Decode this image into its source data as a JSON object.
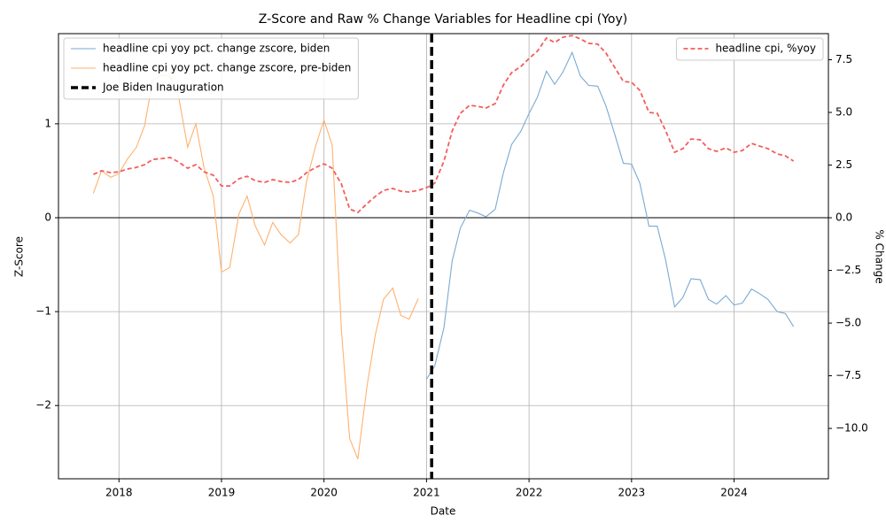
{
  "chart_data": {
    "type": "line",
    "title": "Z-Score and Raw % Change Variables for Headline cpi (Yoy)",
    "x_label": "Date",
    "y_label": "Z-Score",
    "y2_label": "% Change",
    "xlim": [
      2017.41,
      2024.92
    ],
    "xticks": [
      2018,
      2019,
      2020,
      2021,
      2022,
      2023,
      2024
    ],
    "ylim": [
      -2.78,
      1.96
    ],
    "yticks": [
      {
        "value": -2,
        "label": "−2"
      },
      {
        "value": -1,
        "label": "−1"
      },
      0,
      1
    ],
    "y2lim": [
      -12.39,
      8.74
    ],
    "y2ticks": [
      {
        "value": -10,
        "label": "−10.0"
      },
      {
        "value": -7.5,
        "label": "−7.5"
      },
      {
        "value": -5,
        "label": "−5.0"
      },
      {
        "value": -2.5,
        "label": "−2.5"
      },
      {
        "value": 0,
        "label": "0.0"
      },
      2.5,
      {
        "value": 5,
        "label": "5.0"
      },
      7.5
    ],
    "grid": true,
    "legend": "upper left",
    "legend2": "upper right",
    "hline": 0,
    "series": [
      {
        "name": "headline cpi yoy pct. change zscore, biden",
        "color": "#7aaad2",
        "axis": "y",
        "x": [
          2021.0,
          2021.08,
          2021.17,
          2021.25,
          2021.33,
          2021.42,
          2021.5,
          2021.58,
          2021.67,
          2021.75,
          2021.83,
          2021.92,
          2022.0,
          2022.08,
          2022.17,
          2022.25,
          2022.33,
          2022.42,
          2022.5,
          2022.58,
          2022.67,
          2022.75,
          2022.83,
          2022.92,
          2023.0,
          2023.08,
          2023.17,
          2023.25,
          2023.33,
          2023.42,
          2023.5,
          2023.58,
          2023.67,
          2023.75,
          2023.83,
          2023.92,
          2024.0,
          2024.08,
          2024.17,
          2024.25,
          2024.33,
          2024.42,
          2024.5,
          2024.58
        ],
        "values": [
          -1.72,
          -1.58,
          -1.17,
          -0.46,
          -0.11,
          0.08,
          0.05,
          0.01,
          0.09,
          0.48,
          0.78,
          0.92,
          1.11,
          1.28,
          1.56,
          1.42,
          1.55,
          1.76,
          1.51,
          1.41,
          1.4,
          1.19,
          0.91,
          0.58,
          0.57,
          0.37,
          -0.09,
          -0.09,
          -0.44,
          -0.95,
          -0.85,
          -0.65,
          -0.66,
          -0.87,
          -0.92,
          -0.83,
          -0.93,
          -0.91,
          -0.76,
          -0.81,
          -0.87,
          -1.0,
          -1.02,
          -1.16
        ]
      },
      {
        "name": "headline cpi yoy pct. change zscore, pre-biden",
        "color": "#ffb26e",
        "axis": "y",
        "x": [
          2017.75,
          2017.83,
          2017.92,
          2018.0,
          2018.08,
          2018.17,
          2018.25,
          2018.33,
          2018.42,
          2018.5,
          2018.58,
          2018.67,
          2018.75,
          2018.83,
          2018.92,
          2019.0,
          2019.08,
          2019.17,
          2019.25,
          2019.33,
          2019.42,
          2019.5,
          2019.58,
          2019.67,
          2019.75,
          2019.83,
          2019.92,
          2020.0,
          2020.08,
          2020.17,
          2020.25,
          2020.33,
          2020.42,
          2020.5,
          2020.58,
          2020.67,
          2020.75,
          2020.83,
          2020.92
        ],
        "values": [
          0.26,
          0.5,
          0.43,
          0.47,
          0.62,
          0.75,
          0.98,
          1.47,
          1.52,
          1.5,
          1.3,
          0.75,
          1.0,
          0.53,
          0.23,
          -0.58,
          -0.53,
          0.04,
          0.23,
          -0.09,
          -0.29,
          -0.05,
          -0.18,
          -0.27,
          -0.18,
          0.39,
          0.77,
          1.04,
          0.77,
          -1.2,
          -2.35,
          -2.57,
          -1.79,
          -1.25,
          -0.87,
          -0.75,
          -1.04,
          -1.08,
          -0.86
        ]
      },
      {
        "name": "headline cpi, %yoy",
        "color": "#f25f5c",
        "axis": "y2",
        "dashed": true,
        "x": [
          2017.75,
          2017.83,
          2017.92,
          2018.0,
          2018.08,
          2018.17,
          2018.25,
          2018.33,
          2018.42,
          2018.5,
          2018.58,
          2018.67,
          2018.75,
          2018.83,
          2018.92,
          2019.0,
          2019.08,
          2019.17,
          2019.25,
          2019.33,
          2019.42,
          2019.5,
          2019.58,
          2019.67,
          2019.75,
          2019.83,
          2019.92,
          2020.0,
          2020.08,
          2020.17,
          2020.25,
          2020.33,
          2020.42,
          2020.5,
          2020.58,
          2020.67,
          2020.75,
          2020.83,
          2020.92,
          2021.0,
          2021.08,
          2021.17,
          2021.25,
          2021.33,
          2021.42,
          2021.5,
          2021.58,
          2021.67,
          2021.75,
          2021.83,
          2021.92,
          2022.0,
          2022.08,
          2022.17,
          2022.25,
          2022.33,
          2022.42,
          2022.5,
          2022.58,
          2022.67,
          2022.75,
          2022.83,
          2022.92,
          2023.0,
          2023.08,
          2023.17,
          2023.25,
          2023.33,
          2023.42,
          2023.5,
          2023.58,
          2023.67,
          2023.75,
          2023.83,
          2023.92,
          2024.0,
          2024.08,
          2024.17,
          2024.25,
          2024.33,
          2024.42,
          2024.5,
          2024.58
        ],
        "values": [
          2.06,
          2.23,
          2.14,
          2.18,
          2.31,
          2.39,
          2.52,
          2.77,
          2.81,
          2.86,
          2.65,
          2.35,
          2.52,
          2.18,
          2.02,
          1.51,
          1.51,
          1.85,
          1.97,
          1.76,
          1.68,
          1.81,
          1.72,
          1.68,
          1.81,
          2.14,
          2.39,
          2.56,
          2.35,
          1.6,
          0.42,
          0.25,
          0.67,
          1.01,
          1.3,
          1.39,
          1.26,
          1.22,
          1.3,
          1.43,
          1.64,
          2.69,
          4.12,
          4.96,
          5.34,
          5.29,
          5.21,
          5.42,
          6.3,
          6.89,
          7.18,
          7.56,
          7.9,
          8.53,
          8.32,
          8.57,
          8.65,
          8.49,
          8.28,
          8.24,
          7.82,
          7.18,
          6.47,
          6.43,
          6.05,
          5.0,
          4.96,
          4.16,
          3.11,
          3.28,
          3.74,
          3.7,
          3.28,
          3.15,
          3.32,
          3.11,
          3.19,
          3.53,
          3.4,
          3.28,
          3.03,
          2.94,
          2.69
        ]
      }
    ],
    "vline": {
      "name": "Joe Biden Inauguration",
      "x": 2021.05,
      "color": "#000000"
    }
  }
}
